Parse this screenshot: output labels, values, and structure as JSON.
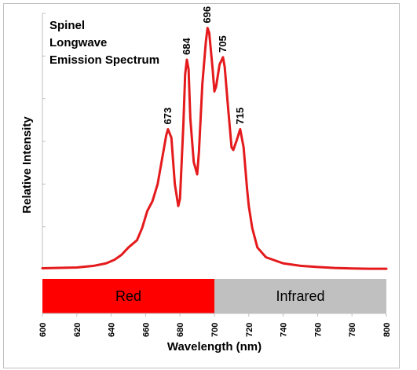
{
  "chart_data": {
    "type": "line",
    "title_lines": [
      "Spinel",
      "Longwave",
      "Emission Spectrum"
    ],
    "xlabel": "Wavelength (nm)",
    "ylabel": "Relative Intensity",
    "xlim": [
      600,
      800
    ],
    "ylim": [
      0,
      1.05
    ],
    "x_ticks": [
      600,
      620,
      640,
      660,
      680,
      700,
      720,
      740,
      760,
      780,
      800
    ],
    "y_tick_count": 6,
    "grid": false,
    "legend": "none",
    "line_color": "#e41a1c",
    "series": [
      {
        "x": [
          600,
          620,
          630,
          637,
          642,
          646,
          650,
          655,
          658,
          661,
          664,
          667,
          670,
          672,
          673,
          675,
          677,
          679,
          680,
          682,
          683,
          684,
          685,
          686,
          688,
          690,
          691,
          693,
          695,
          696,
          697,
          699,
          700,
          701,
          703,
          705,
          706,
          708,
          710,
          711,
          713,
          715,
          717,
          719,
          720,
          722,
          725,
          730,
          740,
          750,
          760,
          770,
          780,
          790,
          800
        ],
        "y": [
          0.005,
          0.008,
          0.015,
          0.025,
          0.04,
          0.06,
          0.09,
          0.12,
          0.17,
          0.24,
          0.28,
          0.35,
          0.47,
          0.55,
          0.575,
          0.54,
          0.35,
          0.26,
          0.29,
          0.6,
          0.8,
          0.86,
          0.82,
          0.62,
          0.44,
          0.39,
          0.48,
          0.76,
          0.93,
          0.99,
          0.97,
          0.82,
          0.73,
          0.75,
          0.84,
          0.87,
          0.83,
          0.66,
          0.5,
          0.49,
          0.53,
          0.575,
          0.5,
          0.33,
          0.26,
          0.17,
          0.09,
          0.05,
          0.025,
          0.015,
          0.01,
          0.006,
          0.004,
          0.003,
          0.003
        ]
      }
    ],
    "peaks": [
      {
        "x": 673,
        "label": "673"
      },
      {
        "x": 684,
        "label": "684"
      },
      {
        "x": 696,
        "label": "696"
      },
      {
        "x": 705,
        "label": "705"
      },
      {
        "x": 715,
        "label": "715"
      }
    ],
    "bands": [
      {
        "label": "Red",
        "from": 600,
        "to": 700,
        "color": "#ff0000"
      },
      {
        "label": "Infrared",
        "from": 700,
        "to": 800,
        "color": "#c0c0c0"
      }
    ]
  }
}
